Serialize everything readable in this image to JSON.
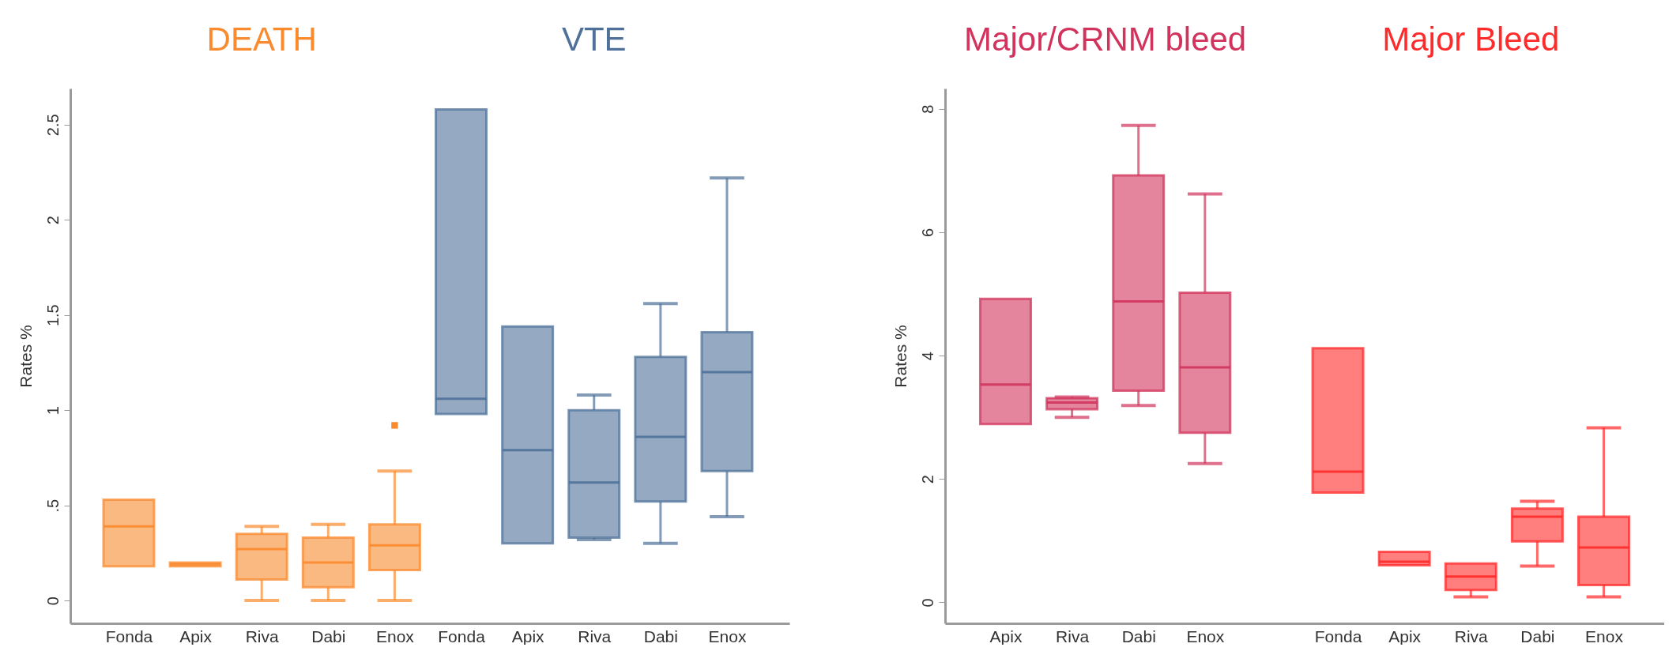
{
  "chart_data": [
    {
      "type": "box",
      "ylabel": "Rates %",
      "categories": [
        "Fonda",
        "Apix",
        "Riva",
        "Dabi",
        "Enox",
        "Fonda",
        "Apix",
        "Riva",
        "Dabi",
        "Enox"
      ],
      "ylim": [
        -0.12,
        2.69
      ],
      "yticks": [
        0,
        {
          "value": 0.5,
          "label": ".5"
        },
        1,
        1.5,
        2,
        2.5
      ],
      "grid": false,
      "series": [
        {
          "name": "DEATH",
          "color": "#f98a2e",
          "boxes": [
            {
              "low": 0.18,
              "q1": 0.18,
              "median": 0.39,
              "q3": 0.53,
              "high": 0.53
            },
            {
              "low": 0.18,
              "q1": 0.18,
              "median": 0.19,
              "q3": 0.2,
              "high": 0.2
            },
            {
              "low": 0,
              "q1": 0.11,
              "median": 0.27,
              "q3": 0.35,
              "high": 0.39
            },
            {
              "low": 0,
              "q1": 0.07,
              "median": 0.2,
              "q3": 0.33,
              "high": 0.4
            },
            {
              "low": 0,
              "q1": 0.16,
              "median": 0.29,
              "q3": 0.4,
              "high": 0.68,
              "outliers": [
                0.92
              ]
            },
            null,
            null,
            null,
            null,
            null
          ]
        },
        {
          "name": "VTE",
          "color": "#4f7199",
          "boxes": [
            null,
            null,
            null,
            null,
            null,
            {
              "low": 0.98,
              "q1": 0.98,
              "median": 1.06,
              "q3": 2.58,
              "high": 2.58
            },
            {
              "low": 0.3,
              "q1": 0.3,
              "median": 0.79,
              "q3": 1.44,
              "high": 1.44
            },
            {
              "low": 0.32,
              "q1": 0.33,
              "median": 0.62,
              "q3": 1.0,
              "high": 1.08
            },
            {
              "low": 0.3,
              "q1": 0.52,
              "median": 0.86,
              "q3": 1.28,
              "high": 1.56
            },
            {
              "low": 0.44,
              "q1": 0.68,
              "median": 1.2,
              "q3": 1.41,
              "high": 2.22
            }
          ]
        }
      ]
    },
    {
      "type": "box",
      "ylabel": "Rates %",
      "categories": [
        "Apix",
        "Riva",
        "Dabi",
        "Enox",
        null,
        "Fonda",
        "Apix",
        "Riva",
        "Dabi",
        "Enox"
      ],
      "ylim": [
        -0.34,
        8.33
      ],
      "yticks": [
        0,
        2,
        4,
        6,
        8
      ],
      "grid": false,
      "series": [
        {
          "name": "Major/CRNM bleed",
          "color": "#d2335c",
          "boxes": [
            {
              "low": 2.89,
              "q1": 2.89,
              "median": 3.53,
              "q3": 4.92,
              "high": 4.92
            },
            {
              "low": 3.0,
              "q1": 3.13,
              "median": 3.24,
              "q3": 3.31,
              "high": 3.33
            },
            {
              "low": 3.19,
              "q1": 3.43,
              "median": 4.88,
              "q3": 6.92,
              "high": 7.73
            },
            {
              "low": 2.25,
              "q1": 2.75,
              "median": 3.81,
              "q3": 5.02,
              "high": 6.62
            },
            null,
            null,
            null,
            null,
            null,
            null
          ]
        },
        {
          "name": "Major Bleed",
          "color": "#ff2a2a",
          "boxes": [
            null,
            null,
            null,
            null,
            null,
            {
              "low": 1.78,
              "q1": 1.78,
              "median": 2.12,
              "q3": 4.12,
              "high": 4.12
            },
            {
              "low": 0.6,
              "q1": 0.6,
              "median": 0.66,
              "q3": 0.82,
              "high": 0.82
            },
            {
              "low": 0.09,
              "q1": 0.2,
              "median": 0.42,
              "q3": 0.63,
              "high": 0.63
            },
            {
              "low": 0.59,
              "q1": 0.99,
              "median": 1.39,
              "q3": 1.52,
              "high": 1.64
            },
            {
              "low": 0.09,
              "q1": 0.28,
              "median": 0.89,
              "q3": 1.39,
              "high": 2.83
            }
          ]
        }
      ]
    }
  ]
}
